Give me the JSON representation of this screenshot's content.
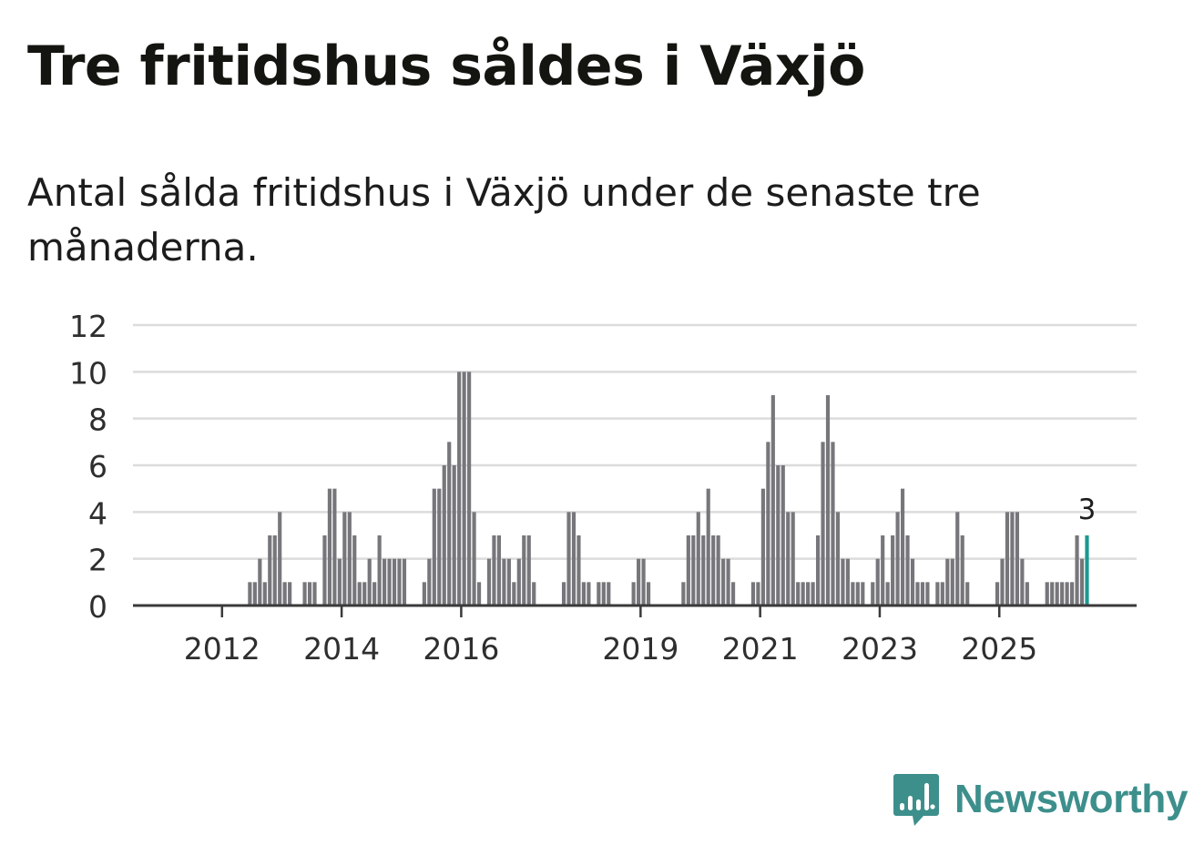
{
  "title": "Tre fritidshus såldes i Växjö",
  "subtitle": "Antal sålda fritidshus i Växjö under de senaste tre månaderna.",
  "brand": {
    "name": "Newsworthy",
    "color": "#3d8f8c",
    "icon": "newsworthy-chart-bubble-icon"
  },
  "chart_data": {
    "type": "bar",
    "title": "Tre fritidshus såldes i Växjö",
    "xlabel": "",
    "ylabel": "",
    "ylim": [
      0,
      12
    ],
    "yticks": [
      0,
      2,
      4,
      6,
      8,
      10,
      12
    ],
    "xticks": [
      "2012",
      "2014",
      "2016",
      "2019",
      "2021",
      "2023",
      "2025"
    ],
    "grid": true,
    "bar_color": "#77767b",
    "highlight_color": "#1a9990",
    "highlight_label": "3",
    "first_month": "2011-07",
    "series": [
      {
        "name": "Antal sålda fritidshus (per månad)",
        "values": [
          0,
          0,
          0,
          0,
          0,
          0,
          0,
          0,
          0,
          0,
          0,
          1,
          1,
          2,
          1,
          3,
          3,
          4,
          1,
          1,
          0,
          0,
          1,
          1,
          1,
          0,
          3,
          5,
          5,
          2,
          4,
          4,
          3,
          1,
          1,
          2,
          1,
          3,
          2,
          2,
          2,
          2,
          2,
          0,
          0,
          0,
          1,
          2,
          5,
          5,
          6,
          7,
          6,
          10,
          10,
          10,
          4,
          1,
          0,
          2,
          3,
          3,
          2,
          2,
          1,
          2,
          3,
          3,
          1,
          0,
          0,
          0,
          0,
          0,
          1,
          4,
          4,
          3,
          1,
          1,
          0,
          1,
          1,
          1,
          0,
          0,
          0,
          0,
          1,
          2,
          2,
          1,
          0,
          0,
          0,
          0,
          0,
          0,
          1,
          3,
          3,
          4,
          3,
          5,
          3,
          3,
          2,
          2,
          1,
          0,
          0,
          0,
          1,
          1,
          5,
          7,
          9,
          6,
          6,
          4,
          4,
          1,
          1,
          1,
          1,
          3,
          7,
          9,
          7,
          4,
          2,
          2,
          1,
          1,
          1,
          0,
          1,
          2,
          3,
          1,
          3,
          4,
          5,
          3,
          2,
          1,
          1,
          1,
          0,
          1,
          1,
          2,
          2,
          4,
          3,
          1,
          0,
          0,
          0,
          0,
          0,
          1,
          2,
          4,
          4,
          4,
          2,
          1,
          0,
          0,
          0,
          1,
          1,
          1,
          1,
          1,
          1,
          3,
          2,
          3
        ]
      }
    ],
    "last_value": 3
  }
}
